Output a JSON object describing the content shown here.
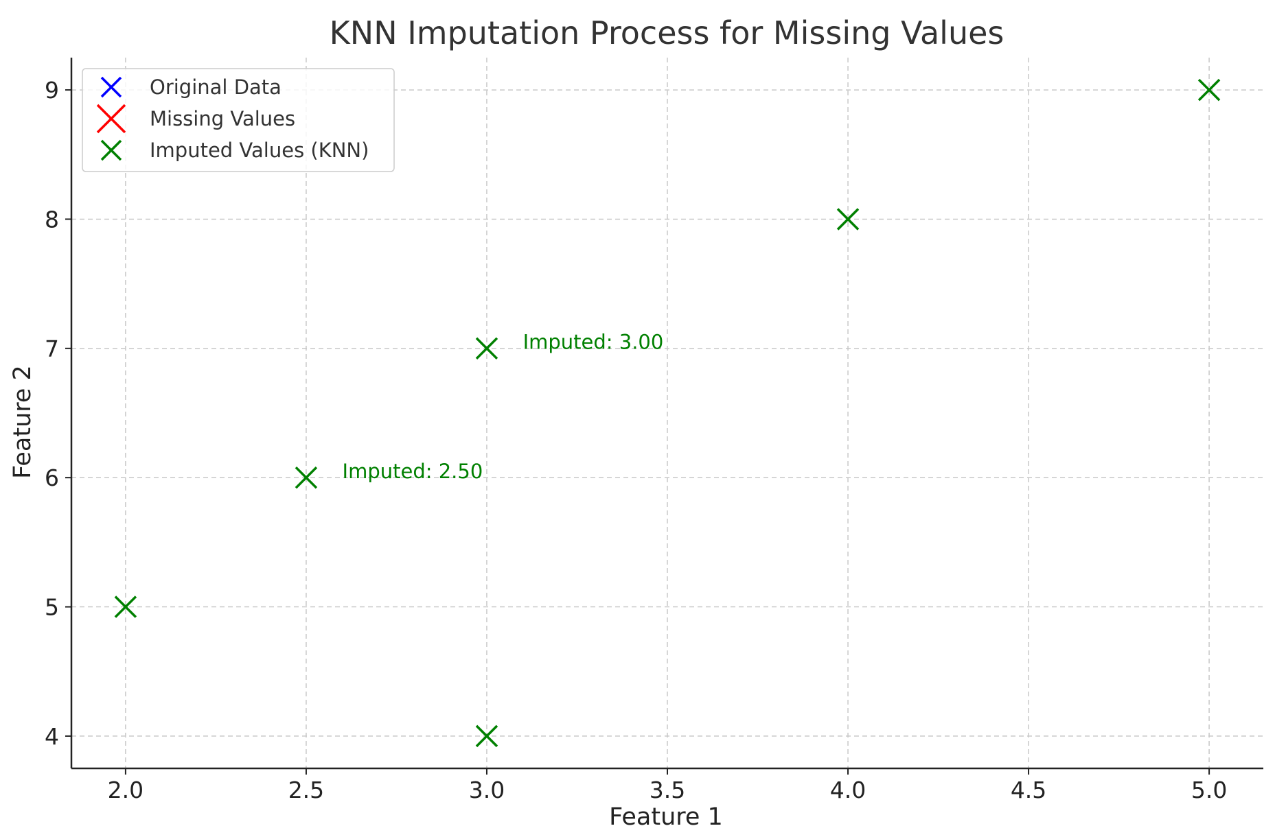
{
  "chart_data": {
    "type": "scatter",
    "title": "KNN Imputation Process for Missing Values",
    "xlabel": "Feature 1",
    "ylabel": "Feature 2",
    "xlim": [
      1.85,
      5.15
    ],
    "ylim": [
      3.75,
      9.25
    ],
    "grid": true,
    "legend_position": "top-left",
    "x_ticks": [
      2.0,
      2.5,
      3.0,
      3.5,
      4.0,
      4.5,
      5.0
    ],
    "x_tick_labels": [
      "2.0",
      "2.5",
      "3.0",
      "3.5",
      "4.0",
      "4.5",
      "5.0"
    ],
    "y_ticks": [
      4,
      5,
      6,
      7,
      8,
      9
    ],
    "y_tick_labels": [
      "4",
      "5",
      "6",
      "7",
      "8",
      "9"
    ],
    "series": [
      {
        "name": "Original Data",
        "color": "#0000ff",
        "marker": "x",
        "marker_size": "small",
        "x": [],
        "y": []
      },
      {
        "name": "Missing Values",
        "color": "#ff0000",
        "marker": "x",
        "marker_size": "large",
        "x": [],
        "y": []
      },
      {
        "name": "Imputed Values (KNN)",
        "color": "#008000",
        "marker": "x",
        "marker_size": "small",
        "x": [
          2.0,
          2.5,
          3.0,
          3.0,
          4.0,
          5.0
        ],
        "y": [
          5,
          6,
          7,
          4,
          8,
          9
        ]
      }
    ],
    "annotations": [
      {
        "text": "Imputed: 2.50",
        "x": 2.6,
        "y": 6.05,
        "color": "#008000"
      },
      {
        "text": "Imputed: 3.00",
        "x": 3.1,
        "y": 7.05,
        "color": "#008000"
      }
    ]
  }
}
